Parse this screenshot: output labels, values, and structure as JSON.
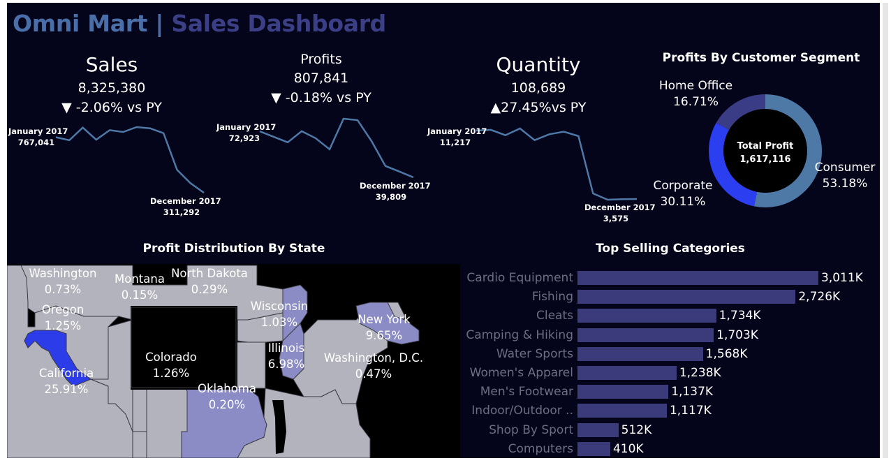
{
  "header": {
    "brand": "Omni Mart",
    "separator": "|",
    "subtitle": "Sales Dashboard"
  },
  "kpis": [
    {
      "label": "Sales",
      "value": "8,325,380",
      "arrow": "▼",
      "change": " -2.06% vs PY",
      "start_label": "January 2017",
      "start_value": "767,041",
      "end_label": "December 2017",
      "end_value": "311,292",
      "trend": [
        767041,
        742000,
        846000,
        747000,
        825000,
        810000,
        850000,
        840000,
        800000,
        500000,
        390000,
        311292
      ]
    },
    {
      "label": "Profits",
      "value": "807,841",
      "arrow": "▼",
      "change": " -0.18% vs PY",
      "start_label": "January 2017",
      "start_value": "72,923",
      "end_label": "December 2017",
      "end_value": "39,809",
      "trend": [
        72923,
        69000,
        65000,
        73000,
        68000,
        60000,
        82000,
        81000,
        66000,
        48000,
        44000,
        39809
      ]
    },
    {
      "label": "Quantity",
      "value": "108,689",
      "arrow": "▲",
      "change": "27.45%vs PY",
      "start_label": "January 2017",
      "start_value": "11,217",
      "end_label": "December 2017",
      "end_value": "3,575",
      "trend": [
        11217,
        11300,
        10700,
        11450,
        10150,
        10800,
        11100,
        10600,
        4200,
        3500,
        3560,
        3575
      ]
    }
  ],
  "segments": {
    "title": "Profits By Customer Segment",
    "center_label": "Total Profit",
    "center_value": "1,617,116",
    "slices": [
      {
        "name": "Consumer",
        "pct_label": "53.18%",
        "value": 53.18,
        "color": "#4e79a7"
      },
      {
        "name": "Corporate",
        "pct_label": "30.11%",
        "value": 30.11,
        "color": "#2b3ef0"
      },
      {
        "name": "Home Office",
        "pct_label": "16.71%",
        "value": 16.71,
        "color": "#3a3d86"
      }
    ]
  },
  "map": {
    "title": "Profit Distribution By State",
    "states": [
      {
        "name": "Washington",
        "pct": "0.73%"
      },
      {
        "name": "Montana",
        "pct": "0.15%"
      },
      {
        "name": "North Dakota",
        "pct": "0.29%"
      },
      {
        "name": "Oregon",
        "pct": "1.25%"
      },
      {
        "name": "Wisconsin",
        "pct": "1.03%"
      },
      {
        "name": "New York",
        "pct": "9.65%"
      },
      {
        "name": "Illinois",
        "pct": "6.98%"
      },
      {
        "name": "Colorado",
        "pct": "1.26%"
      },
      {
        "name": "Washington, D.C.",
        "pct": "0.47%"
      },
      {
        "name": "California",
        "pct": "25.91%"
      },
      {
        "name": "Oklahoma",
        "pct": "0.20%"
      }
    ],
    "colors": {
      "high": "#2c3ce8",
      "mid": "#8b8cc6",
      "low": "#b3b3bd",
      "none": "#000000"
    }
  },
  "chart_data": {
    "type": "bar",
    "title": "Top Selling Categories",
    "categories": [
      "Cardio Equipment",
      "Fishing",
      "Cleats",
      "Camping & Hiking",
      "Water Sports",
      "Women's Apparel",
      "Men's Footwear",
      "Indoor/Outdoor ..",
      "Shop By Sport",
      "Computers"
    ],
    "values": [
      3011,
      2726,
      1734,
      1703,
      1568,
      1238,
      1137,
      1117,
      512,
      410
    ],
    "value_labels": [
      "3,011K",
      "2,726K",
      "1,734K",
      "1,703K",
      "1,568K",
      "1,238K",
      "1,137K",
      "1,117K",
      "512K",
      "410K"
    ],
    "orientation": "horizontal",
    "bar_color": "#3b3b7c"
  }
}
